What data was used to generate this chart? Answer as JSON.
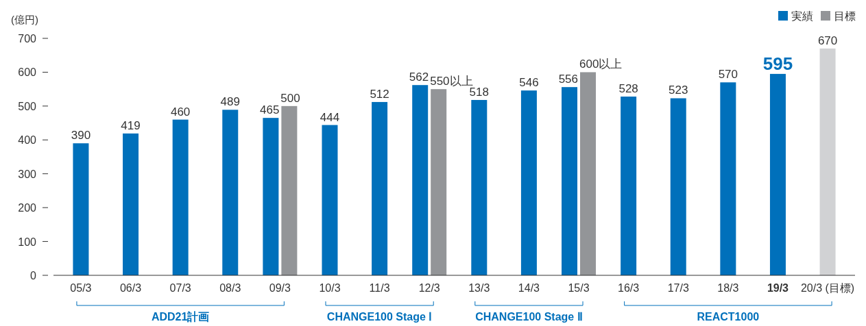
{
  "chart_data": {
    "type": "bar",
    "ylabel": "(億円)",
    "categories": [
      "05/3",
      "06/3",
      "07/3",
      "08/3",
      "09/3",
      "10/3",
      "11/3",
      "12/3",
      "13/3",
      "14/3",
      "15/3",
      "16/3",
      "17/3",
      "18/3",
      "19/3",
      "20/3 (目標)"
    ],
    "series": [
      {
        "name": "実績",
        "color": "#0070bb",
        "values": [
          390,
          419,
          460,
          489,
          465,
          444,
          512,
          562,
          518,
          546,
          556,
          528,
          523,
          570,
          595,
          null
        ],
        "value_labels": [
          "390",
          "419",
          "460",
          "489",
          "465",
          "444",
          "512",
          "562",
          "518",
          "546",
          "556",
          "528",
          "523",
          "570",
          "595",
          null
        ]
      },
      {
        "name": "目標",
        "color": "#939598",
        "colors": [
          null,
          null,
          null,
          null,
          "#939598",
          null,
          null,
          "#939598",
          null,
          null,
          "#939598",
          null,
          null,
          null,
          null,
          "#d1d2d4"
        ],
        "values": [
          null,
          null,
          null,
          null,
          500,
          null,
          null,
          550,
          null,
          null,
          600,
          null,
          null,
          null,
          null,
          670
        ],
        "value_labels": [
          null,
          null,
          null,
          null,
          "500",
          null,
          null,
          "550以上",
          null,
          null,
          "600以上",
          null,
          null,
          null,
          null,
          "670"
        ]
      }
    ],
    "ylim": [
      0,
      700
    ],
    "yticks": [
      0,
      100,
      200,
      300,
      400,
      500,
      600,
      700
    ],
    "legend": "top right",
    "annotations": [
      "ADD21計画",
      "CHANGE100 Stage Ⅰ",
      "CHANGE100 Stage Ⅱ",
      "REACT1000"
    ]
  }
}
